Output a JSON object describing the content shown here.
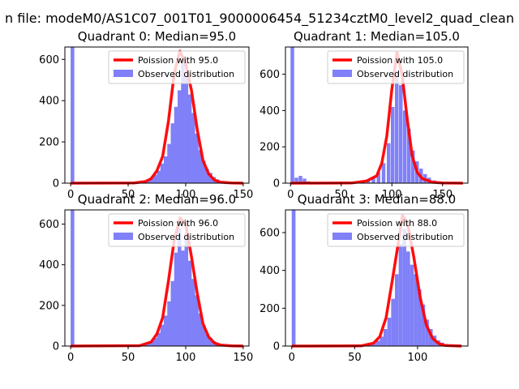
{
  "figure": {
    "suptitle": "n file: modeM0/AS1C07_001T01_9000006454_51234cztM0_level2_quad_clean"
  },
  "chart_data": [
    {
      "type": "bar+line",
      "title": "Quadrant 0: Median=95.0",
      "xlabel": "",
      "ylabel": "",
      "xlim": [
        -5,
        155
      ],
      "ylim": [
        0,
        660
      ],
      "xticks": [
        0,
        50,
        100,
        150
      ],
      "yticks": [
        0,
        200,
        400,
        600
      ],
      "legend_position": "top-right",
      "bin_width": 3.2,
      "observed": {
        "name": "Observed distribution",
        "color": "#8080f8",
        "bins": [
          [
            0,
            660
          ],
          [
            57,
            2
          ],
          [
            60,
            4
          ],
          [
            63,
            8
          ],
          [
            66,
            15
          ],
          [
            69,
            25
          ],
          [
            72,
            40
          ],
          [
            75,
            60
          ],
          [
            78,
            95
          ],
          [
            81,
            130
          ],
          [
            84,
            190
          ],
          [
            87,
            290
          ],
          [
            90,
            370
          ],
          [
            93,
            450
          ],
          [
            96,
            600
          ],
          [
            99,
            520
          ],
          [
            102,
            430
          ],
          [
            105,
            340
          ],
          [
            108,
            240
          ],
          [
            111,
            160
          ],
          [
            114,
            110
          ],
          [
            117,
            70
          ],
          [
            120,
            50
          ],
          [
            123,
            30
          ],
          [
            126,
            18
          ],
          [
            129,
            10
          ],
          [
            132,
            6
          ],
          [
            135,
            4
          ],
          [
            138,
            3
          ],
          [
            141,
            2
          ],
          [
            144,
            1
          ]
        ]
      },
      "fit": {
        "name": "Poission with 95.0",
        "color": "#ff0000",
        "points": [
          [
            0,
            0
          ],
          [
            55,
            1
          ],
          [
            65,
            8
          ],
          [
            70,
            22
          ],
          [
            75,
            60
          ],
          [
            80,
            130
          ],
          [
            85,
            300
          ],
          [
            90,
            530
          ],
          [
            95,
            640
          ],
          [
            100,
            580
          ],
          [
            105,
            450
          ],
          [
            110,
            260
          ],
          [
            115,
            110
          ],
          [
            120,
            45
          ],
          [
            125,
            15
          ],
          [
            130,
            5
          ],
          [
            140,
            1
          ],
          [
            150,
            0
          ]
        ]
      }
    },
    {
      "type": "bar+line",
      "title": "Quadrant 1: Median=105.0",
      "xlabel": "",
      "ylabel": "",
      "xlim": [
        -5,
        175
      ],
      "ylim": [
        0,
        750
      ],
      "xticks": [
        0,
        50,
        100,
        150
      ],
      "yticks": [
        0,
        200,
        400,
        600
      ],
      "legend_position": "top-right",
      "bin_width": 3.6,
      "observed": {
        "name": "Observed distribution",
        "color": "#8080f8",
        "bins": [
          [
            0,
            750
          ],
          [
            4,
            30
          ],
          [
            8,
            40
          ],
          [
            12,
            25
          ],
          [
            16,
            10
          ],
          [
            60,
            3
          ],
          [
            65,
            8
          ],
          [
            70,
            12
          ],
          [
            75,
            20
          ],
          [
            80,
            35
          ],
          [
            85,
            60
          ],
          [
            90,
            110
          ],
          [
            95,
            220
          ],
          [
            99,
            420
          ],
          [
            103,
            620
          ],
          [
            107,
            540
          ],
          [
            111,
            400
          ],
          [
            115,
            300
          ],
          [
            119,
            180
          ],
          [
            123,
            120
          ],
          [
            127,
            80
          ],
          [
            131,
            50
          ],
          [
            135,
            30
          ],
          [
            140,
            15
          ],
          [
            145,
            8
          ],
          [
            150,
            4
          ],
          [
            155,
            2
          ],
          [
            160,
            1
          ]
        ]
      },
      "fit": {
        "name": "Poission with 105.0",
        "color": "#ff0000",
        "points": [
          [
            0,
            0
          ],
          [
            60,
            1
          ],
          [
            75,
            12
          ],
          [
            85,
            40
          ],
          [
            90,
            110
          ],
          [
            95,
            260
          ],
          [
            100,
            520
          ],
          [
            105,
            720
          ],
          [
            110,
            600
          ],
          [
            115,
            360
          ],
          [
            120,
            150
          ],
          [
            125,
            60
          ],
          [
            130,
            25
          ],
          [
            140,
            5
          ],
          [
            150,
            1
          ],
          [
            170,
            0
          ]
        ]
      }
    },
    {
      "type": "bar+line",
      "title": "Quadrant 2: Median=96.0",
      "xlabel": "",
      "ylabel": "",
      "xlim": [
        -5,
        155
      ],
      "ylim": [
        0,
        670
      ],
      "xticks": [
        0,
        50,
        100,
        150
      ],
      "yticks": [
        0,
        200,
        400,
        600
      ],
      "legend_position": "top-right",
      "bin_width": 3.2,
      "observed": {
        "name": "Observed distribution",
        "color": "#8080f8",
        "bins": [
          [
            0,
            670
          ],
          [
            57,
            2
          ],
          [
            60,
            4
          ],
          [
            63,
            8
          ],
          [
            66,
            14
          ],
          [
            69,
            24
          ],
          [
            72,
            40
          ],
          [
            75,
            65
          ],
          [
            78,
            105
          ],
          [
            81,
            150
          ],
          [
            84,
            220
          ],
          [
            87,
            320
          ],
          [
            90,
            460
          ],
          [
            93,
            580
          ],
          [
            96,
            470
          ],
          [
            99,
            560
          ],
          [
            102,
            420
          ],
          [
            105,
            330
          ],
          [
            108,
            250
          ],
          [
            111,
            160
          ],
          [
            114,
            100
          ],
          [
            117,
            60
          ],
          [
            120,
            40
          ],
          [
            123,
            24
          ],
          [
            126,
            14
          ],
          [
            129,
            8
          ],
          [
            132,
            5
          ],
          [
            135,
            3
          ],
          [
            138,
            2
          ],
          [
            141,
            1
          ]
        ]
      },
      "fit": {
        "name": "Poission with 96.0",
        "color": "#ff0000",
        "points": [
          [
            0,
            0
          ],
          [
            60,
            2
          ],
          [
            70,
            20
          ],
          [
            75,
            60
          ],
          [
            80,
            140
          ],
          [
            85,
            320
          ],
          [
            90,
            520
          ],
          [
            95,
            630
          ],
          [
            100,
            600
          ],
          [
            105,
            440
          ],
          [
            110,
            260
          ],
          [
            115,
            110
          ],
          [
            120,
            45
          ],
          [
            125,
            15
          ],
          [
            130,
            5
          ],
          [
            140,
            1
          ],
          [
            150,
            0
          ]
        ]
      }
    },
    {
      "type": "bar+line",
      "title": "Quadrant 3: Median=88.0",
      "xlabel": "",
      "ylabel": "",
      "xlim": [
        -5,
        140
      ],
      "ylim": [
        0,
        720
      ],
      "xticks": [
        0,
        50,
        100
      ],
      "yticks": [
        0,
        200,
        400,
        600
      ],
      "legend_position": "top-right",
      "bin_width": 3.0,
      "observed": {
        "name": "Observed distribution",
        "color": "#8080f8",
        "bins": [
          [
            0,
            720
          ],
          [
            55,
            2
          ],
          [
            58,
            4
          ],
          [
            61,
            8
          ],
          [
            64,
            15
          ],
          [
            67,
            28
          ],
          [
            70,
            50
          ],
          [
            73,
            90
          ],
          [
            76,
            150
          ],
          [
            79,
            250
          ],
          [
            82,
            380
          ],
          [
            85,
            540
          ],
          [
            88,
            620
          ],
          [
            91,
            500
          ],
          [
            94,
            430
          ],
          [
            97,
            380
          ],
          [
            100,
            300
          ],
          [
            103,
            220
          ],
          [
            106,
            140
          ],
          [
            109,
            90
          ],
          [
            112,
            55
          ],
          [
            115,
            30
          ],
          [
            118,
            18
          ],
          [
            121,
            10
          ],
          [
            124,
            6
          ],
          [
            127,
            3
          ],
          [
            130,
            2
          ]
        ]
      },
      "fit": {
        "name": "Poission with 88.0",
        "color": "#ff0000",
        "points": [
          [
            0,
            0
          ],
          [
            55,
            1
          ],
          [
            65,
            15
          ],
          [
            70,
            50
          ],
          [
            75,
            150
          ],
          [
            80,
            350
          ],
          [
            85,
            560
          ],
          [
            88,
            690
          ],
          [
            92,
            650
          ],
          [
            97,
            470
          ],
          [
            102,
            260
          ],
          [
            107,
            110
          ],
          [
            112,
            40
          ],
          [
            117,
            12
          ],
          [
            122,
            3
          ],
          [
            130,
            1
          ],
          [
            135,
            0
          ]
        ]
      }
    }
  ]
}
